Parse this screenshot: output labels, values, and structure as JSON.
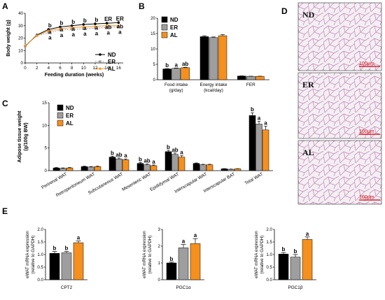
{
  "colors": {
    "ND": "#000000",
    "ER": "#9e9e9e",
    "AL": "#f5901e",
    "tissue_bg": "#ece7ee",
    "tissue_line": "#c88bb8",
    "scale": "#d0000a"
  },
  "panels": {
    "A": "A",
    "B": "B",
    "C": "C",
    "D": "D",
    "E": "E"
  },
  "groups": [
    "ND",
    "ER",
    "AL"
  ],
  "histology": {
    "labels": [
      "ND",
      "ER",
      "AL"
    ],
    "scale_bar": "100μm"
  },
  "chart_data": [
    {
      "type": "line",
      "panel": "A",
      "xlabel": "Feeding duration (weeks)",
      "ylabel": "Body weight (g)",
      "x": [
        0,
        2,
        4,
        6,
        8,
        10,
        12,
        14,
        16
      ],
      "xlim": [
        0,
        16.8
      ],
      "ylim": [
        0,
        40
      ],
      "yticks": [
        0,
        10,
        20,
        30,
        40
      ],
      "legend": "lower-right",
      "series": [
        {
          "name": "ND",
          "values": [
            13.5,
            22.5,
            27.0,
            29.0,
            30.0,
            31.0,
            31.5,
            32.0,
            32.5
          ],
          "sd": [
            1,
            1,
            1,
            1,
            1,
            1.2,
            1.2,
            1.2,
            1.2
          ]
        },
        {
          "name": "ER",
          "values": [
            13.5,
            22.0,
            24.5,
            26.5,
            27.0,
            27.5,
            28.0,
            28.5,
            29.0
          ],
          "sd": [
            1,
            1,
            1,
            1,
            1,
            1,
            1,
            1,
            1
          ]
        },
        {
          "name": "AL",
          "values": [
            14.0,
            22.0,
            26.0,
            27.5,
            28.5,
            29.0,
            29.5,
            30.0,
            30.0
          ],
          "sd": [
            1,
            1,
            1,
            1,
            1,
            1,
            1,
            1,
            1
          ]
        }
      ],
      "annotations": [
        {
          "x": 4,
          "labels": [
            "b",
            "a",
            "a"
          ]
        },
        {
          "x": 6,
          "labels": [
            "b",
            "a",
            "a"
          ]
        },
        {
          "x": 8,
          "labels": [
            "b",
            "a",
            "a"
          ]
        },
        {
          "x": 10,
          "labels": [
            "b",
            "a",
            "a"
          ]
        },
        {
          "x": 12,
          "labels": [
            "b",
            "a",
            "a"
          ]
        },
        {
          "x": 14,
          "labels": [
            "b",
            "a",
            "ab"
          ]
        },
        {
          "x": 16,
          "labels": [
            "b",
            "a",
            "ab"
          ]
        }
      ],
      "top_labels": [
        {
          "x": 4,
          "text": "b"
        },
        {
          "x": 6,
          "text": "b"
        },
        {
          "x": 8,
          "text": "b"
        },
        {
          "x": 10,
          "text": "b"
        },
        {
          "x": 12,
          "text": "b"
        },
        {
          "x": 14,
          "text": "ER"
        },
        {
          "x": 16,
          "text": "ER"
        }
      ]
    },
    {
      "type": "bar",
      "panel": "B",
      "ylabel": "",
      "categories": [
        "Food intake\n(g/day)",
        "Energy intake\n(kcal/day)",
        "FER"
      ],
      "ylim": [
        0,
        20
      ],
      "yticks": [
        0,
        5,
        10,
        15,
        20
      ],
      "legend": "top-left",
      "series": [
        {
          "name": "ND",
          "values": [
            3.5,
            14.0,
            1.2
          ],
          "sd": [
            0.1,
            0.3,
            0.05
          ]
        },
        {
          "name": "ER",
          "values": [
            3.7,
            13.7,
            1.1
          ],
          "sd": [
            0.1,
            0.2,
            0.05
          ]
        },
        {
          "name": "AL",
          "values": [
            3.9,
            14.3,
            1.1
          ],
          "sd": [
            0.15,
            0.4,
            0.05
          ]
        }
      ],
      "sig": [
        [
          "b",
          "a",
          "ab"
        ],
        [
          "",
          "",
          ""
        ],
        [
          "",
          "",
          ""
        ]
      ]
    },
    {
      "type": "bar",
      "panel": "C",
      "ylabel": "Adipose tissue weight\n(g/100g BW)",
      "categories": [
        "Perirenal WAT",
        "Retroperitoneum WAT",
        "Subcutaneous WAT",
        "Mesenteric WAT",
        "Epididymal WAT",
        "Interscapular WAT",
        "Interscapular BAT",
        "Total WAT"
      ],
      "ylim": [
        0,
        15
      ],
      "yticks": [
        0,
        5,
        10,
        15
      ],
      "legend": "top-left",
      "series": [
        {
          "name": "ND",
          "values": [
            0.6,
            0.9,
            3.0,
            1.6,
            4.2,
            1.6,
            0.4,
            12.2
          ],
          "sd": [
            0.1,
            0.1,
            0.2,
            0.2,
            0.3,
            0.1,
            0.05,
            0.6
          ]
        },
        {
          "name": "ER",
          "values": [
            0.5,
            0.8,
            2.6,
            1.3,
            3.6,
            1.3,
            0.3,
            10.3
          ],
          "sd": [
            0.1,
            0.1,
            0.2,
            0.15,
            0.3,
            0.1,
            0.05,
            0.6
          ]
        },
        {
          "name": "AL",
          "values": [
            0.6,
            0.9,
            2.4,
            1.1,
            3.0,
            1.3,
            0.4,
            9.0
          ],
          "sd": [
            0.1,
            0.1,
            0.2,
            0.15,
            0.3,
            0.1,
            0.05,
            0.8
          ]
        }
      ],
      "sig": [
        [
          "",
          "",
          ""
        ],
        [
          "",
          "",
          ""
        ],
        [
          "b",
          "ab",
          "a"
        ],
        [
          "b",
          "ab",
          "a"
        ],
        [
          "b",
          "ab",
          "a"
        ],
        [
          "",
          "",
          ""
        ],
        [
          "",
          "",
          ""
        ],
        [
          "b",
          "a",
          "a"
        ]
      ]
    },
    {
      "type": "bar",
      "panel": "E1",
      "ylabel": "eWAT mRNA expression\n(relative to GAPDH)",
      "xlabel": "CPT2",
      "ylim": [
        0,
        2.0
      ],
      "yticks": [
        0.0,
        0.5,
        1.0,
        1.5,
        2.0
      ],
      "tick_labels": [
        "0.0",
        "0.5",
        "1.0",
        "1.5",
        "2.0"
      ],
      "series": [
        {
          "name": "ND",
          "values": [
            1.05
          ],
          "sd": [
            0.07
          ]
        },
        {
          "name": "ER",
          "values": [
            1.07
          ],
          "sd": [
            0.06
          ]
        },
        {
          "name": "AL",
          "values": [
            1.47
          ],
          "sd": [
            0.07
          ]
        }
      ],
      "sig": [
        [
          "b",
          "b",
          "a"
        ]
      ]
    },
    {
      "type": "bar",
      "panel": "E2",
      "ylabel": "eWAT mRNA expression\n(relative to GAPDH)",
      "xlabel": "PGC1α",
      "ylim": [
        0,
        3
      ],
      "yticks": [
        0,
        1,
        2,
        3
      ],
      "tick_labels": [
        "0",
        "1",
        "2",
        "3"
      ],
      "series": [
        {
          "name": "ND",
          "values": [
            1.0
          ],
          "sd": [
            0.05
          ]
        },
        {
          "name": "ER",
          "values": [
            1.9
          ],
          "sd": [
            0.2
          ]
        },
        {
          "name": "AL",
          "values": [
            2.15
          ],
          "sd": [
            0.3
          ]
        }
      ],
      "sig": [
        [
          "b",
          "a",
          "a"
        ]
      ]
    },
    {
      "type": "bar",
      "panel": "E3",
      "ylabel": "eWAT mRNA expression\n(relative to GAPDH)",
      "xlabel": "PGC1β",
      "ylim": [
        0,
        2.0
      ],
      "yticks": [
        0.0,
        0.5,
        1.0,
        1.5,
        2.0
      ],
      "tick_labels": [
        "0.0",
        "0.5",
        "1.0",
        "1.5",
        "2.0"
      ],
      "series": [
        {
          "name": "ND",
          "values": [
            1.02
          ],
          "sd": [
            0.06
          ]
        },
        {
          "name": "ER",
          "values": [
            0.9
          ],
          "sd": [
            0.1
          ]
        },
        {
          "name": "AL",
          "values": [
            1.6
          ],
          "sd": [
            0.1
          ]
        }
      ],
      "sig": [
        [
          "b",
          "b",
          "a"
        ]
      ]
    }
  ]
}
